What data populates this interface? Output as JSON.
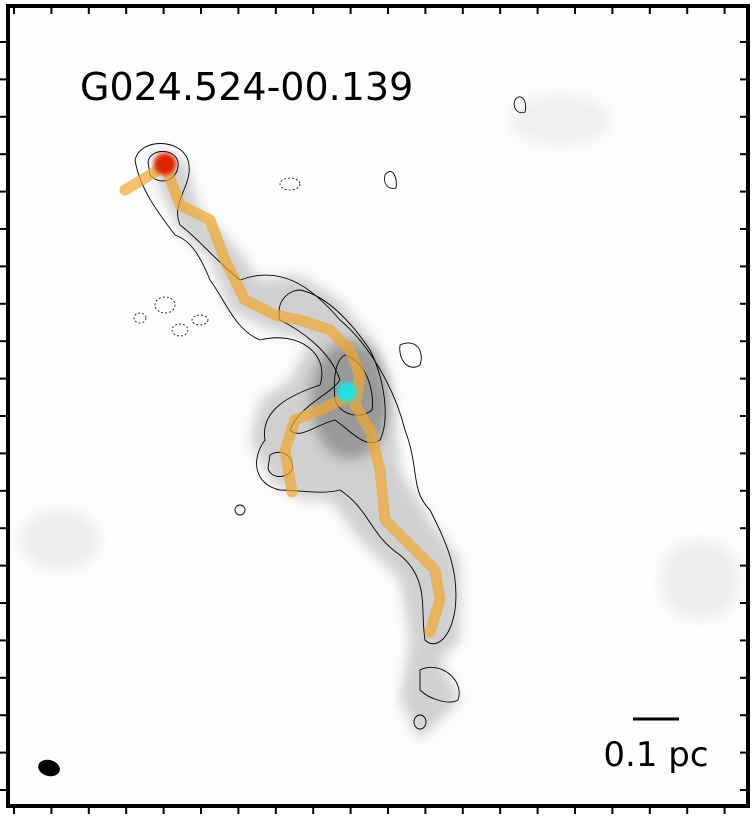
{
  "title": "G024.524-00.139",
  "scale_bar": "0.1 pc"
}
